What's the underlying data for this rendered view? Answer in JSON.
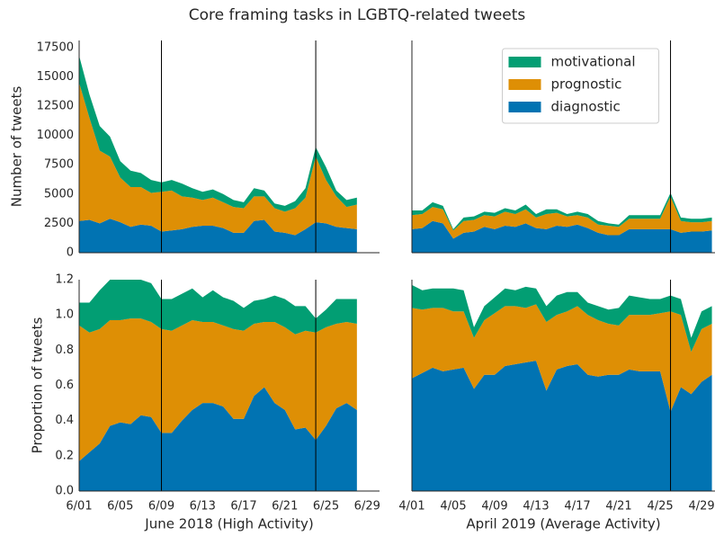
{
  "title": "Core framing tasks in LGBTQ-related tweets",
  "chart_data": [
    {
      "type": "area",
      "stacked": true,
      "ylabel": "Number of tweets",
      "x": [
        1,
        2,
        3,
        4,
        5,
        6,
        7,
        8,
        9,
        10,
        11,
        12,
        13,
        14,
        15,
        16,
        17,
        18,
        19,
        20,
        21,
        22,
        23,
        24,
        25,
        26,
        27,
        28
      ],
      "xlim": [
        1,
        30.2
      ],
      "ylim": [
        0,
        18100
      ],
      "yticks": [
        0,
        2500,
        5000,
        7500,
        10000,
        12500,
        15000,
        17500
      ],
      "vlines": [
        9,
        24
      ],
      "series": [
        {
          "name": "diagnostic",
          "color": "#0173b2",
          "values": [
            2700,
            2800,
            2500,
            2900,
            2600,
            2200,
            2400,
            2300,
            1800,
            1900,
            2000,
            2200,
            2300,
            2300,
            2100,
            1700,
            1700,
            2700,
            2800,
            1800,
            1700,
            1500,
            2000,
            2600,
            2500,
            2200,
            2100,
            2000
          ]
        },
        {
          "name": "prognostic",
          "color": "#de8f05",
          "values": [
            11800,
            8700,
            6200,
            5300,
            3800,
            3400,
            3200,
            2800,
            3400,
            3400,
            2800,
            2500,
            2200,
            2400,
            2200,
            2200,
            2100,
            2100,
            2000,
            2000,
            1800,
            2300,
            2700,
            5600,
            3700,
            2600,
            1800,
            2100
          ]
        },
        {
          "name": "motivational",
          "color": "#029e73",
          "values": [
            2300,
            2000,
            2100,
            1700,
            1400,
            1400,
            1200,
            1100,
            800,
            900,
            1100,
            800,
            700,
            700,
            700,
            600,
            500,
            700,
            500,
            400,
            500,
            600,
            800,
            800,
            1100,
            500,
            600,
            600
          ]
        }
      ]
    },
    {
      "type": "area",
      "stacked": true,
      "legend": "upper center",
      "x": [
        1,
        2,
        3,
        4,
        5,
        6,
        7,
        8,
        9,
        10,
        11,
        12,
        13,
        14,
        15,
        16,
        17,
        18,
        19,
        20,
        21,
        22,
        23,
        24,
        25,
        26,
        27,
        28,
        29,
        30
      ],
      "xlim": [
        1,
        30.3
      ],
      "ylim": [
        0,
        18100
      ],
      "vlines": [
        26
      ],
      "series": [
        {
          "name": "diagnostic",
          "color": "#0173b2",
          "values": [
            2000,
            2100,
            2700,
            2500,
            1200,
            1700,
            1800,
            2200,
            2000,
            2300,
            2200,
            2500,
            2100,
            2000,
            2300,
            2200,
            2400,
            2100,
            1700,
            1500,
            1500,
            2000,
            2000,
            2000,
            2000,
            2000,
            1700,
            1800,
            1800,
            1900
          ]
        },
        {
          "name": "prognostic",
          "color": "#de8f05",
          "values": [
            1200,
            1200,
            1200,
            1200,
            700,
            1000,
            1000,
            1000,
            1100,
            1200,
            1100,
            1200,
            900,
            1300,
            1100,
            900,
            800,
            900,
            700,
            800,
            700,
            900,
            900,
            900,
            900,
            2800,
            1000,
            800,
            800,
            800
          ]
        },
        {
          "name": "motivational",
          "color": "#029e73",
          "values": [
            400,
            300,
            400,
            300,
            100,
            300,
            300,
            300,
            300,
            300,
            300,
            400,
            300,
            400,
            300,
            200,
            300,
            300,
            300,
            200,
            200,
            300,
            300,
            300,
            300,
            300,
            300,
            300,
            300,
            300
          ]
        }
      ]
    },
    {
      "type": "area",
      "stacked": true,
      "ylabel": "Proportion of tweets",
      "xlabel": "June 2018 (High Activity)",
      "x": [
        1,
        2,
        3,
        4,
        5,
        6,
        7,
        8,
        9,
        10,
        11,
        12,
        13,
        14,
        15,
        16,
        17,
        18,
        19,
        20,
        21,
        22,
        23,
        24,
        25,
        26,
        27,
        28
      ],
      "xlim": [
        1,
        30.2
      ],
      "ylim": [
        0,
        1.2
      ],
      "yticks": [
        {
          "value": 0,
          "label": "0.0"
        },
        0.2,
        0.4,
        0.6,
        0.8,
        {
          "value": 1,
          "label": "1.0"
        },
        1.2
      ],
      "xticks": [
        {
          "value": 1,
          "label": "6/01"
        },
        {
          "value": 5,
          "label": "6/05"
        },
        {
          "value": 9,
          "label": "6/09"
        },
        {
          "value": 13,
          "label": "6/13"
        },
        {
          "value": 17,
          "label": "6/17"
        },
        {
          "value": 21,
          "label": "6/21"
        },
        {
          "value": 25,
          "label": "6/25"
        },
        {
          "value": 29,
          "label": "6/29"
        }
      ],
      "vlines": [
        9,
        24
      ],
      "series": [
        {
          "name": "diagnostic",
          "color": "#0173b2",
          "values": [
            0.17,
            0.22,
            0.27,
            0.37,
            0.39,
            0.38,
            0.43,
            0.42,
            0.33,
            0.33,
            0.4,
            0.46,
            0.5,
            0.5,
            0.48,
            0.41,
            0.41,
            0.54,
            0.59,
            0.5,
            0.46,
            0.35,
            0.36,
            0.29,
            0.37,
            0.47,
            0.5,
            0.46
          ]
        },
        {
          "name": "prognostic",
          "color": "#de8f05",
          "values": [
            0.77,
            0.68,
            0.65,
            0.6,
            0.58,
            0.6,
            0.55,
            0.54,
            0.59,
            0.58,
            0.54,
            0.51,
            0.46,
            0.46,
            0.46,
            0.51,
            0.5,
            0.41,
            0.37,
            0.46,
            0.47,
            0.54,
            0.55,
            0.61,
            0.56,
            0.48,
            0.46,
            0.49
          ]
        },
        {
          "name": "motivational",
          "color": "#029e73",
          "values": [
            0.13,
            0.17,
            0.22,
            0.23,
            0.23,
            0.22,
            0.22,
            0.22,
            0.17,
            0.18,
            0.18,
            0.18,
            0.14,
            0.18,
            0.16,
            0.16,
            0.13,
            0.13,
            0.13,
            0.15,
            0.16,
            0.16,
            0.14,
            0.08,
            0.1,
            0.14,
            0.13,
            0.14
          ]
        }
      ]
    },
    {
      "type": "area",
      "stacked": true,
      "xlabel": "April 2019 (Average Activity)",
      "x": [
        1,
        2,
        3,
        4,
        5,
        6,
        7,
        8,
        9,
        10,
        11,
        12,
        13,
        14,
        15,
        16,
        17,
        18,
        19,
        20,
        21,
        22,
        23,
        24,
        25,
        26,
        27,
        28,
        29,
        30
      ],
      "xlim": [
        1,
        30.3
      ],
      "ylim": [
        0,
        1.2
      ],
      "xticks": [
        {
          "value": 1,
          "label": "4/01"
        },
        {
          "value": 5,
          "label": "4/05"
        },
        {
          "value": 9,
          "label": "4/09"
        },
        {
          "value": 13,
          "label": "4/13"
        },
        {
          "value": 17,
          "label": "4/17"
        },
        {
          "value": 21,
          "label": "4/21"
        },
        {
          "value": 25,
          "label": "4/25"
        },
        {
          "value": 29,
          "label": "4/29"
        }
      ],
      "vlines": [
        26
      ],
      "series": [
        {
          "name": "diagnostic",
          "color": "#0173b2",
          "values": [
            0.64,
            0.67,
            0.7,
            0.68,
            0.69,
            0.7,
            0.58,
            0.66,
            0.66,
            0.71,
            0.72,
            0.73,
            0.74,
            0.57,
            0.69,
            0.71,
            0.72,
            0.66,
            0.65,
            0.66,
            0.66,
            0.69,
            0.68,
            0.68,
            0.68,
            0.45,
            0.59,
            0.55,
            0.62,
            0.66
          ]
        },
        {
          "name": "prognostic",
          "color": "#de8f05",
          "values": [
            0.4,
            0.36,
            0.34,
            0.36,
            0.33,
            0.32,
            0.29,
            0.31,
            0.35,
            0.34,
            0.33,
            0.31,
            0.32,
            0.39,
            0.31,
            0.31,
            0.33,
            0.34,
            0.32,
            0.29,
            0.28,
            0.31,
            0.32,
            0.32,
            0.33,
            0.57,
            0.41,
            0.24,
            0.3,
            0.29
          ]
        },
        {
          "name": "motivational",
          "color": "#029e73",
          "values": [
            0.13,
            0.11,
            0.11,
            0.11,
            0.13,
            0.12,
            0.06,
            0.08,
            0.09,
            0.1,
            0.09,
            0.12,
            0.09,
            0.09,
            0.11,
            0.11,
            0.08,
            0.07,
            0.08,
            0.08,
            0.1,
            0.11,
            0.1,
            0.09,
            0.08,
            0.09,
            0.09,
            0.08,
            0.1,
            0.1
          ]
        }
      ]
    }
  ]
}
